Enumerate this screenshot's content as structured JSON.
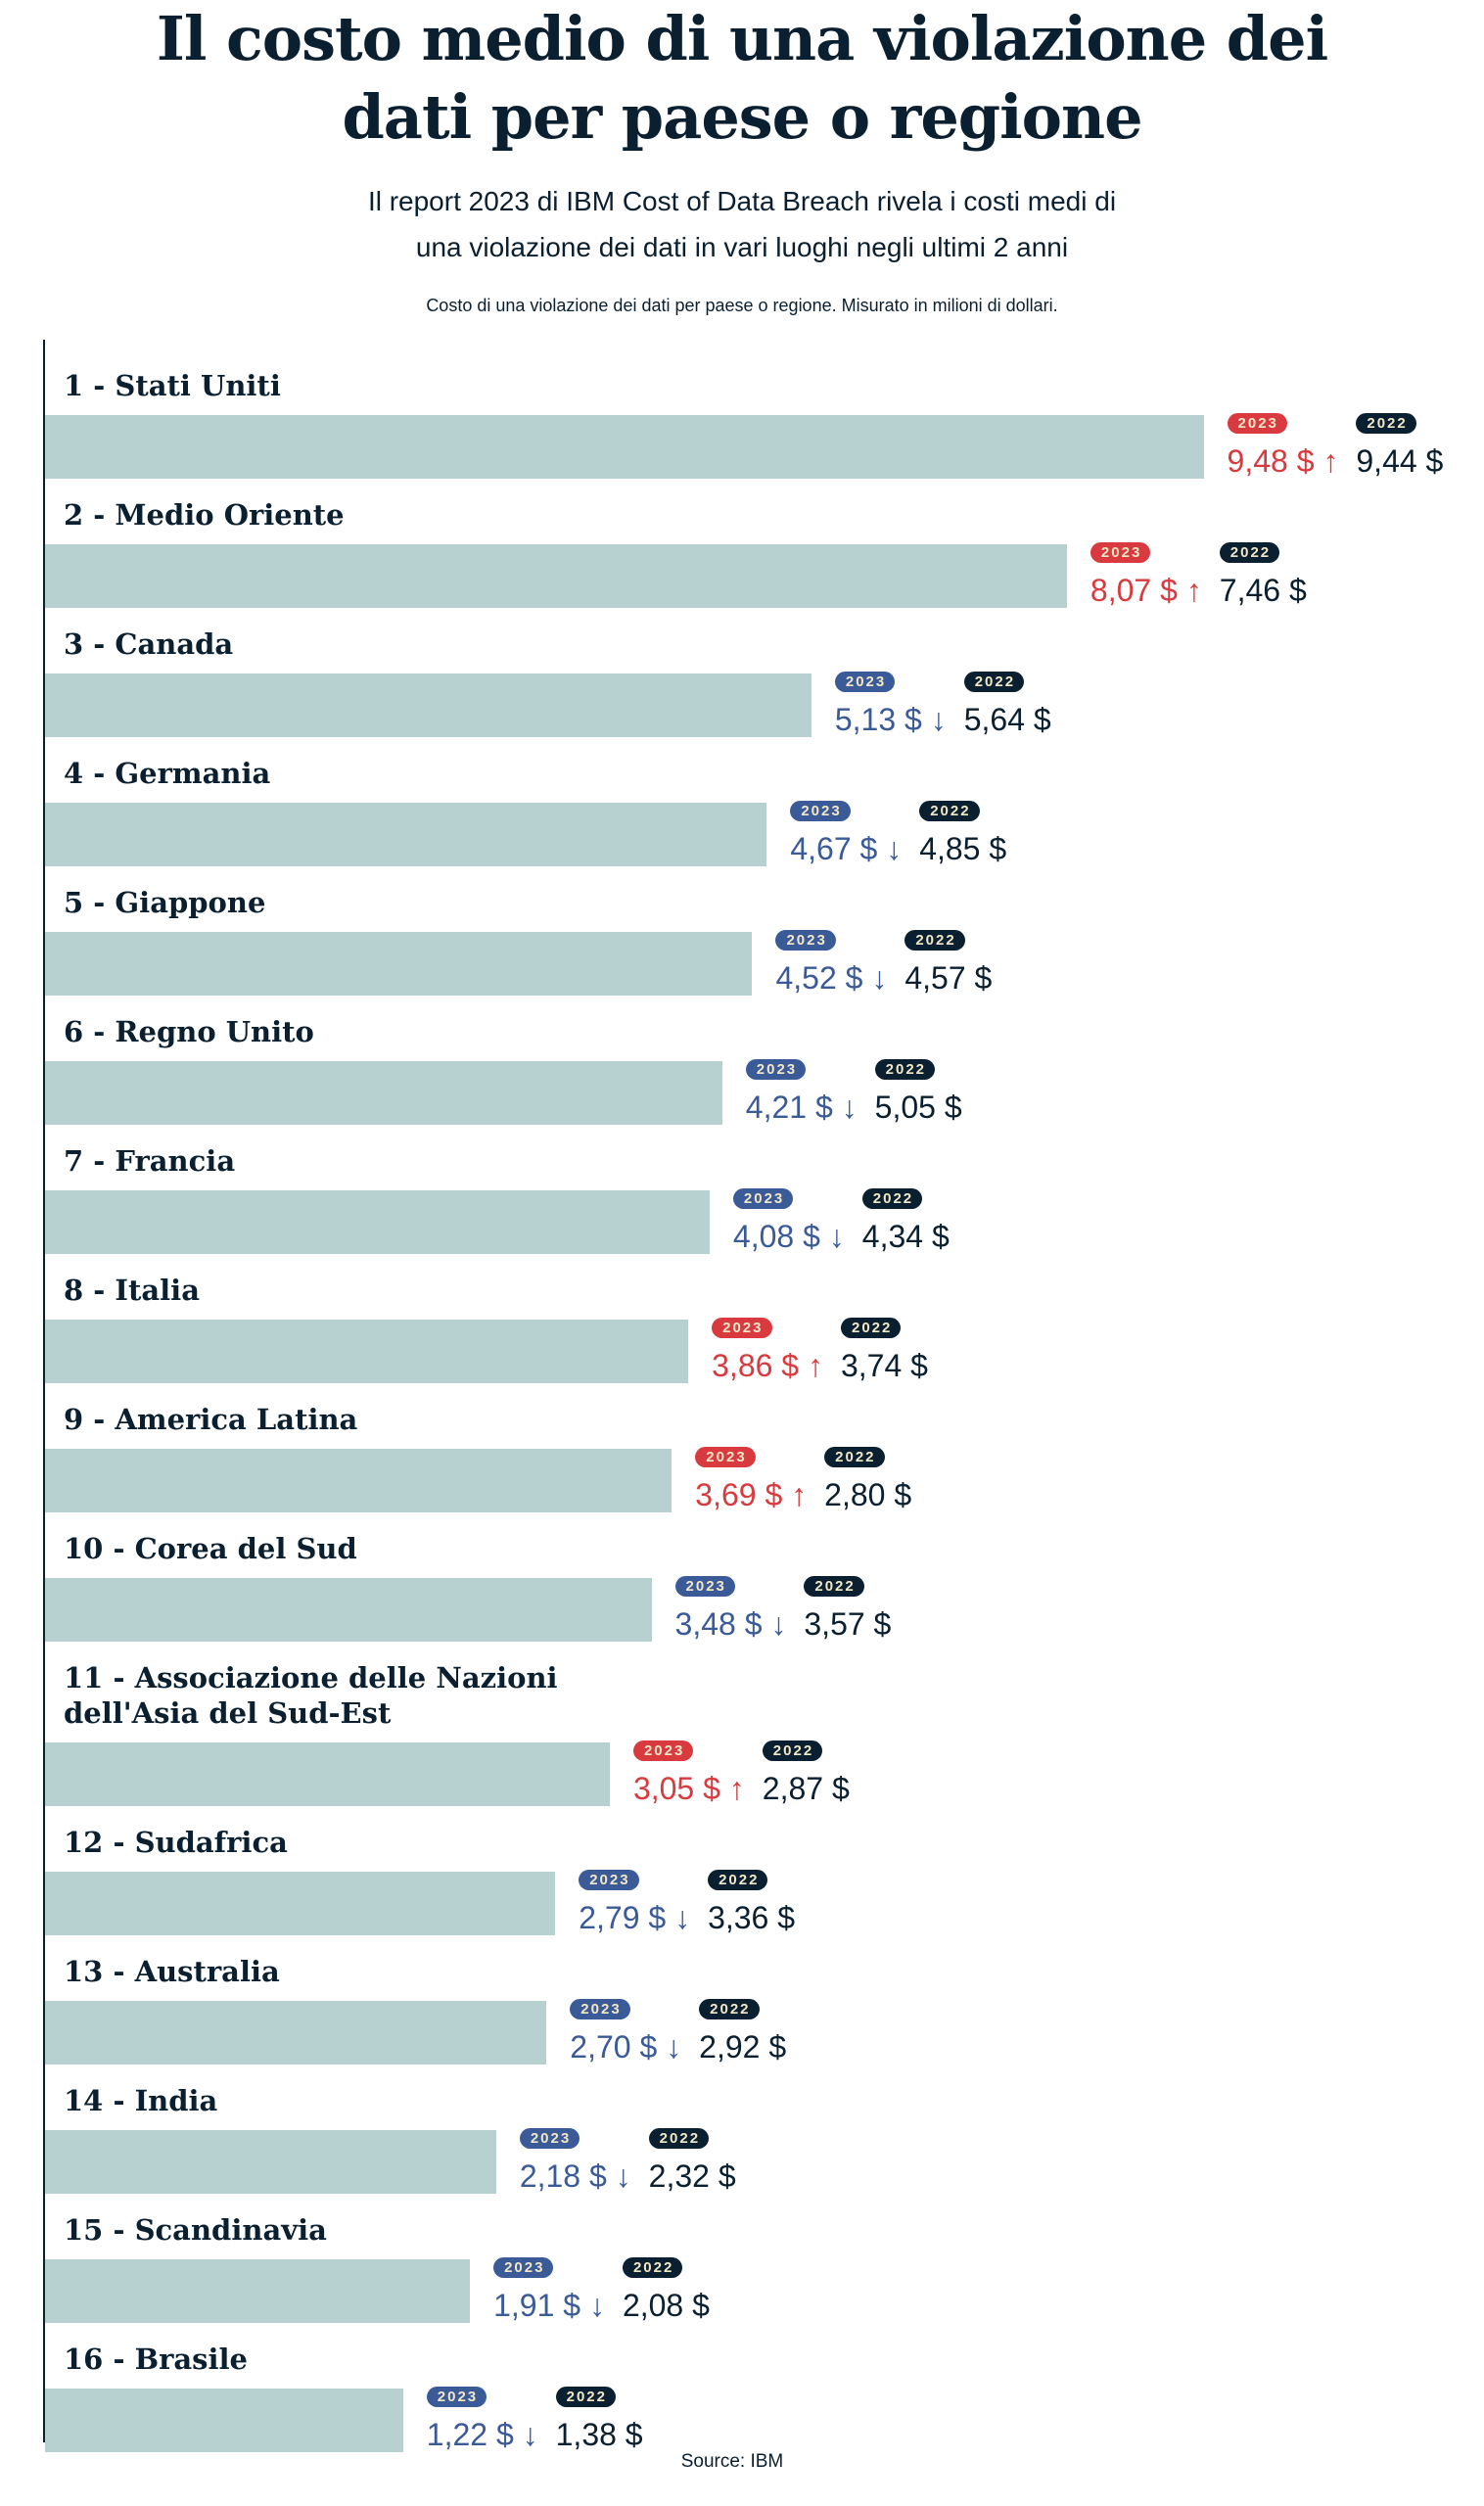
{
  "title_lines": [
    "Il costo medio di una violazione dei",
    "dati per paese o regione"
  ],
  "subtitle_lines": [
    "Il report 2023 di IBM Cost of Data Breach rivela i costi medi di",
    "una violazione dei dati in vari luoghi negli ultimi 2 anni"
  ],
  "note": "Costo di una violazione dei dati per paese o regione. Misurato in milioni di dollari.",
  "source": "Source: IBM",
  "colors": {
    "bar": "#b7d1d1",
    "up": "#d93a3f",
    "down": "#3a5a98",
    "dark": "#0a1f2f",
    "badge_text": "#f2e7c6"
  },
  "chart_data": {
    "type": "bar",
    "orientation": "horizontal",
    "title": "Il costo medio di una violazione dei dati per paese o regione",
    "unit": "milioni di dollari",
    "series_labels": [
      "2023",
      "2022"
    ],
    "categories": [
      "1 - Stati Uniti",
      "2 - Medio Oriente",
      "3 - Canada",
      "4 - Germania",
      "5 - Giappone",
      "6 - Regno Unito",
      "7 - Francia",
      "8 - Italia",
      "9 - America Latina",
      "10 - Corea del Sud",
      "11 - Associazione delle Nazioni dell'Asia del Sud-Est",
      "12 - Sudafrica",
      "13 - Australia",
      "14 - India",
      "15 - Scandinavia",
      "16 - Brasile"
    ],
    "label_lines": [
      [
        "1 - Stati Uniti"
      ],
      [
        "2 - Medio Oriente"
      ],
      [
        "3 - Canada"
      ],
      [
        "4 - Germania"
      ],
      [
        "5 - Giappone"
      ],
      [
        "6 - Regno Unito"
      ],
      [
        "7 - Francia"
      ],
      [
        "8 - Italia"
      ],
      [
        "9 - America Latina"
      ],
      [
        "10 - Corea del Sud"
      ],
      [
        "11 - Associazione delle Nazioni",
        "dell'Asia del Sud-Est"
      ],
      [
        "12 - Sudafrica"
      ],
      [
        "13 - Australia"
      ],
      [
        "14 - India"
      ],
      [
        "15 - Scandinavia"
      ],
      [
        "16 - Brasile"
      ]
    ],
    "values_2023": [
      9.48,
      8.07,
      5.13,
      4.67,
      4.52,
      4.21,
      4.08,
      3.86,
      3.69,
      3.48,
      3.05,
      2.79,
      2.7,
      2.18,
      1.91,
      1.22
    ],
    "values_2022": [
      9.44,
      7.46,
      5.64,
      4.85,
      4.57,
      5.05,
      4.34,
      3.74,
      2.8,
      3.57,
      2.87,
      3.36,
      2.92,
      2.32,
      2.08,
      1.38
    ],
    "labels_2023": [
      "9,48 $",
      "8,07 $",
      "5,13 $",
      "4,67 $",
      "4,52 $",
      "4,21 $",
      "4,08 $",
      "3,86 $",
      "3,69 $",
      "3,48 $",
      "3,05 $",
      "2,79 $",
      "2,70 $",
      "2,18 $",
      "1,91 $",
      "1,22 $"
    ],
    "labels_2022": [
      "9,44 $",
      "7,46 $",
      "5,64 $",
      "4,85 $",
      "4,57 $",
      "5,05 $",
      "4,34 $",
      "3,74 $",
      "2,80 $",
      "3,57 $",
      "2,87 $",
      "3,36 $",
      "2,92 $",
      "2,32 $",
      "2,08 $",
      "1,38 $"
    ],
    "trend_icons": {
      "up": "arrow-up-icon",
      "down": "arrow-down-icon"
    }
  }
}
